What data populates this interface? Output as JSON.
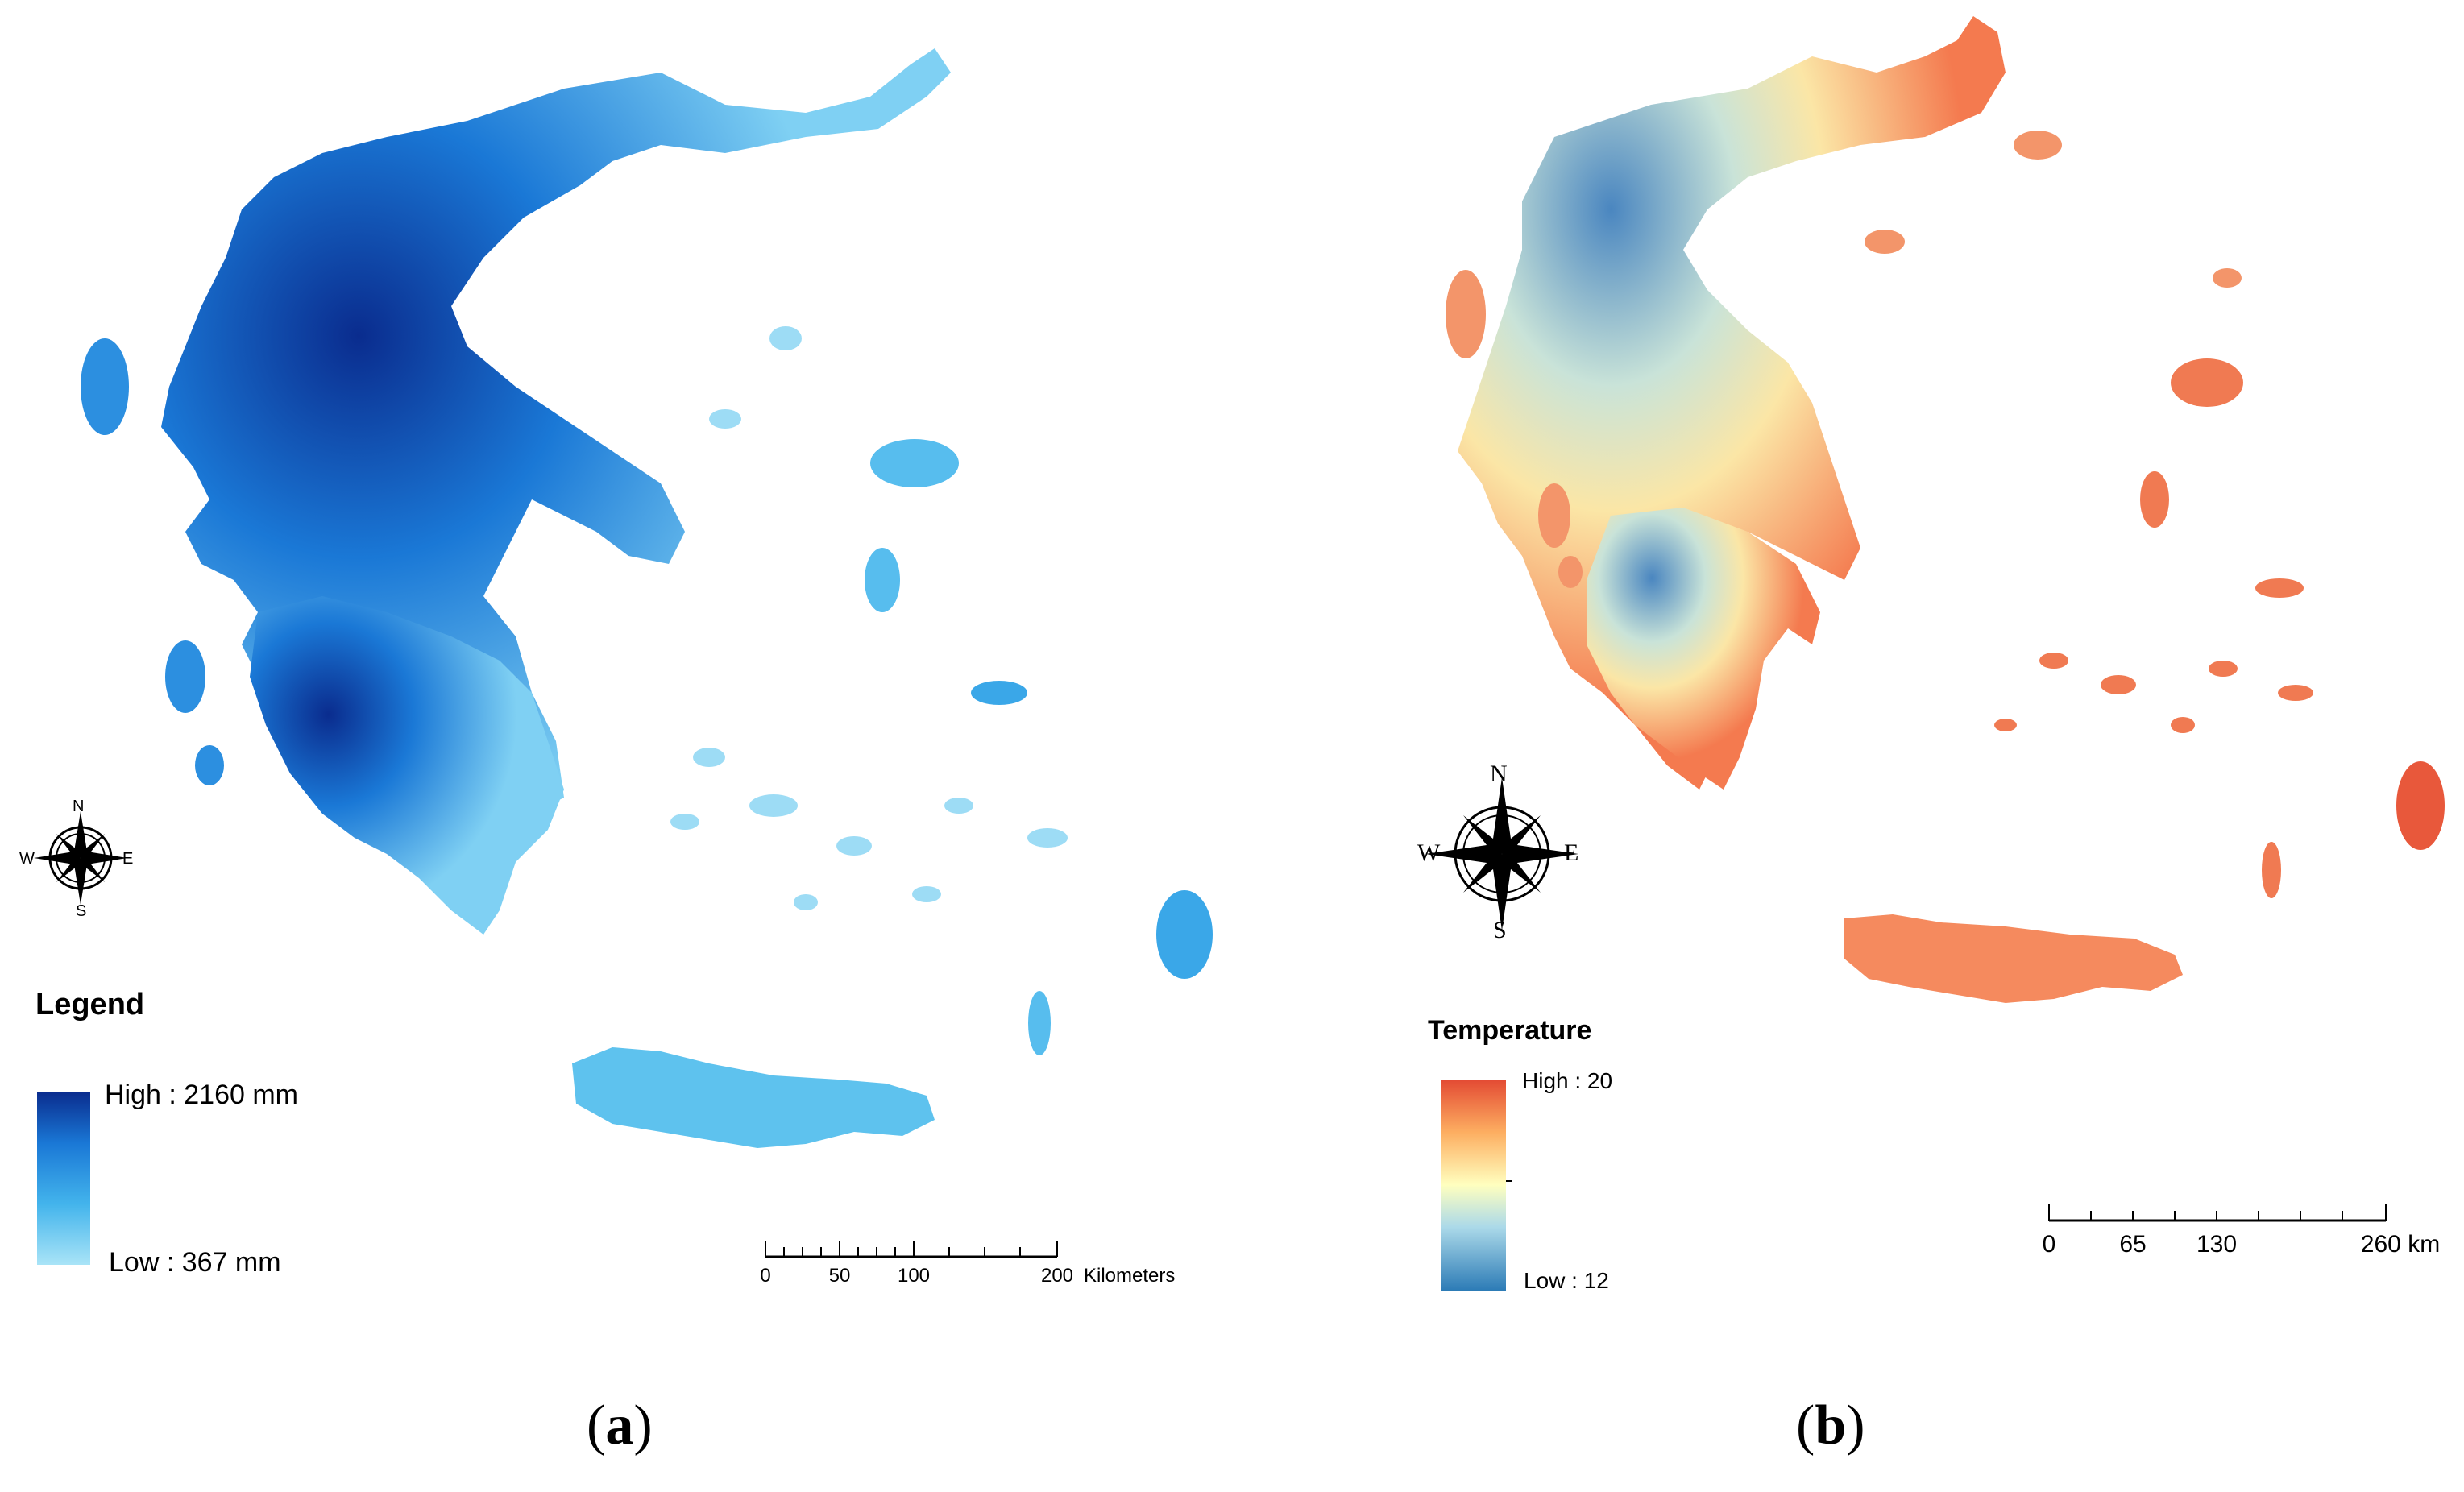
{
  "panel_a": {
    "caption_open": "(",
    "caption_letter": "a",
    "caption_close": ")",
    "legend_title": "Legend",
    "legend_high": "High : 2160 mm",
    "legend_low": "Low : 367 mm",
    "colors": [
      "#a9e4f7",
      "#43b4ec",
      "#1a78d6",
      "#0a2c8e"
    ],
    "scale_ticks": [
      "0",
      "50",
      "100",
      "200"
    ],
    "scale_unit": "Kilometers",
    "compass": {
      "n": "N",
      "e": "E",
      "s": "S",
      "w": "W"
    }
  },
  "panel_b": {
    "caption_open": "(",
    "caption_letter": "b",
    "caption_close": ")",
    "legend_title": "Temperature",
    "legend_high": "High : 20",
    "legend_low": "Low : 12",
    "colors": [
      "#2c7bb6",
      "#abd9e9",
      "#ffffbf",
      "#fdae61",
      "#e34a33"
    ],
    "scale_ticks": [
      "0",
      "65",
      "130",
      "260 km"
    ],
    "scale_unit": "",
    "compass": {
      "n": "N",
      "e": "E",
      "s": "S",
      "w": "W"
    }
  }
}
